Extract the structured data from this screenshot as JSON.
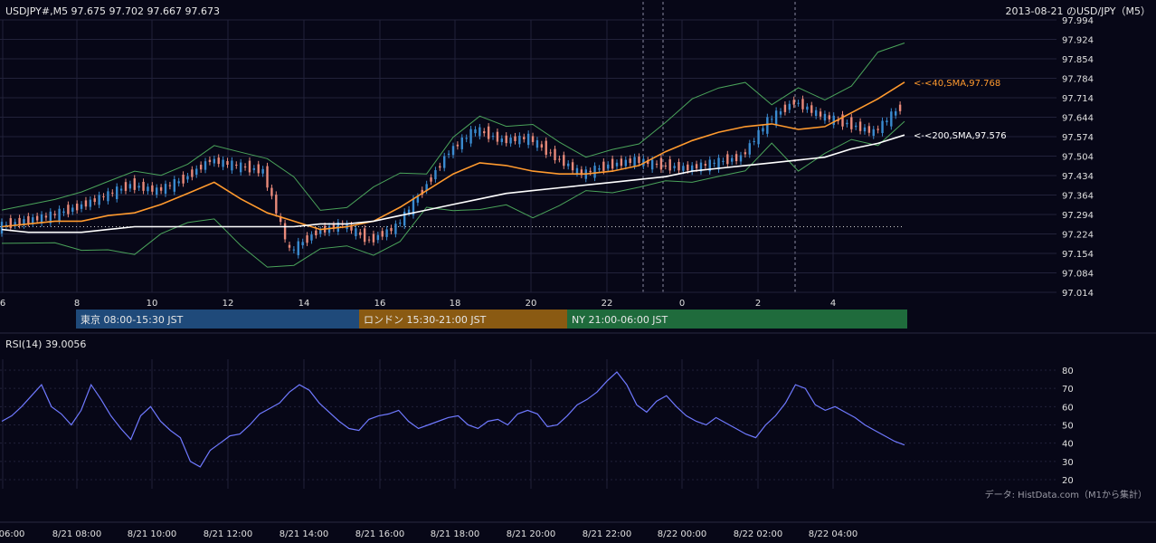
{
  "header": {
    "symbol_info": "USDJPY#,M5 97.675 97.702 97.667 97.673",
    "chart_title": "2013-08-21 のUSD/JPY（M5）"
  },
  "chart_data": {
    "type": "line",
    "main": {
      "y_ticks": [
        "97.994",
        "97.924",
        "97.854",
        "97.784",
        "97.714",
        "97.644",
        "97.574",
        "97.504",
        "97.434",
        "97.364",
        "97.294",
        "97.224",
        "97.154",
        "97.084",
        "97.014"
      ],
      "ylim": [
        97.014,
        97.994
      ],
      "x_ticks": [
        "6",
        "8",
        "10",
        "12",
        "14",
        "16",
        "18",
        "20",
        "22",
        "0",
        "2",
        "4"
      ],
      "series": [
        {
          "name": "<-<40,SMA,97.768",
          "color": "#ff9a2e",
          "values": [
            97.25,
            97.26,
            97.27,
            97.27,
            97.29,
            97.3,
            97.33,
            97.37,
            97.41,
            97.35,
            97.3,
            97.27,
            97.24,
            97.25,
            97.27,
            97.32,
            97.38,
            97.44,
            97.48,
            97.47,
            97.45,
            97.44,
            97.44,
            97.45,
            97.47,
            97.52,
            97.56,
            97.59,
            97.61,
            97.62,
            97.6,
            97.61,
            97.66,
            97.71,
            97.77
          ]
        },
        {
          "name": "<-<200,SMA,97.576",
          "color": "#ffffff",
          "values": [
            97.24,
            97.23,
            97.23,
            97.23,
            97.24,
            97.25,
            97.25,
            97.25,
            97.25,
            97.25,
            97.25,
            97.25,
            97.26,
            97.26,
            97.27,
            97.29,
            97.31,
            97.33,
            97.35,
            97.37,
            97.38,
            97.39,
            97.4,
            97.41,
            97.42,
            97.43,
            97.45,
            97.46,
            97.47,
            97.48,
            97.49,
            97.5,
            97.53,
            97.55,
            97.58
          ]
        },
        {
          "name": "",
          "color": "#e0e0e0",
          "values": [
            97.25,
            97.27,
            97.29,
            97.32,
            97.36,
            97.4,
            97.38,
            97.42,
            97.49,
            97.47,
            97.45,
            97.16,
            97.23,
            97.26,
            97.2,
            97.25,
            97.38,
            97.52,
            97.6,
            97.56,
            97.57,
            97.5,
            97.44,
            97.47,
            97.49,
            97.47,
            97.46,
            97.48,
            97.5,
            97.63,
            97.7,
            97.65,
            97.62,
            97.59,
            97.68
          ]
        }
      ],
      "last_price_label": "97.673",
      "dotted_level": 97.25
    },
    "sessions": [
      {
        "label": "東京 08:00-15:30 JST",
        "color": "#1f4a7a"
      },
      {
        "label": "ロンドン 15:30-21:00 JST",
        "color": "#8a5a12"
      },
      {
        "label": "NY 21:00-06:00 JST",
        "color": "#1f6b3c"
      }
    ],
    "rsi": {
      "label": "RSI(14) 39.0056",
      "y_ticks": [
        "80",
        "70",
        "60",
        "50",
        "40",
        "30",
        "20"
      ],
      "ylim": [
        20,
        80
      ],
      "color": "#6f79ff",
      "values": [
        52,
        55,
        60,
        66,
        72,
        60,
        56,
        50,
        58,
        72,
        64,
        55,
        48,
        42,
        55,
        60,
        52,
        47,
        43,
        30,
        27,
        36,
        40,
        44,
        45,
        50,
        56,
        59,
        62,
        68,
        72,
        69,
        62,
        57,
        52,
        48,
        47,
        53,
        55,
        56,
        58,
        52,
        48,
        50,
        52,
        54,
        55,
        50,
        48,
        52,
        53,
        50,
        56,
        58,
        56,
        49,
        50,
        55,
        61,
        64,
        68,
        74,
        79,
        72,
        61,
        57,
        63,
        66,
        60,
        55,
        52,
        50,
        54,
        51,
        48,
        45,
        43,
        50,
        55,
        62,
        72,
        70,
        61,
        58,
        60,
        57,
        54,
        50,
        47,
        44,
        41,
        39
      ]
    },
    "time_axis": [
      "06:00",
      "8/21 08:00",
      "8/21 10:00",
      "8/21 12:00",
      "8/21 14:00",
      "8/21 16:00",
      "8/21 18:00",
      "8/21 20:00",
      "8/21 22:00",
      "8/22 00:00",
      "8/22 02:00",
      "8/22 04:00"
    ]
  },
  "footer": {
    "source": "データ: HistData.com（M1から集計）"
  },
  "colors": {
    "background": "#070717",
    "grid": "#22223a",
    "up": "#3a8bd0",
    "down": "#e98a7a",
    "bands": "#4aa35a"
  }
}
